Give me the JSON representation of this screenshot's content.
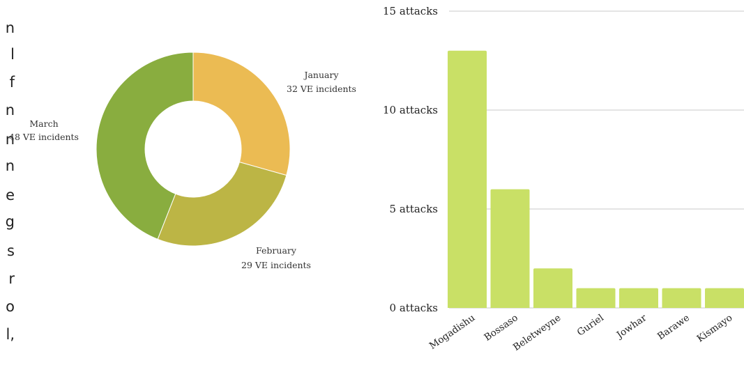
{
  "side_text_fragments": [
    "n",
    "l",
    "f",
    "n",
    "n",
    "n",
    "e",
    "g",
    "s",
    "r",
    "o",
    "l,"
  ],
  "chart_data": [
    {
      "type": "pie",
      "categories": [
        "January",
        "February",
        "March"
      ],
      "values": [
        32,
        29,
        48
      ],
      "data_labels": [
        "32 VE incidents",
        "29 VE incidents",
        "48 VE incidents"
      ],
      "colors": [
        "#ebbb53",
        "#bcb545",
        "#89ad3f"
      ],
      "donut": true
    },
    {
      "type": "bar",
      "categories": [
        "Mogadishu",
        "Bossaso",
        "Beletweyne",
        "Guriel",
        "Jowhar",
        "Barawe",
        "Kismayo"
      ],
      "values": [
        13,
        6,
        2,
        1,
        1,
        1,
        1
      ],
      "ylim": [
        0,
        15
      ],
      "yticks": [
        0,
        5,
        10,
        15
      ],
      "ytick_labels": [
        "0 attacks",
        "5 attacks",
        "10 attacks",
        "15 attacks"
      ],
      "bar_color": "#c9e066",
      "grid": true
    }
  ]
}
